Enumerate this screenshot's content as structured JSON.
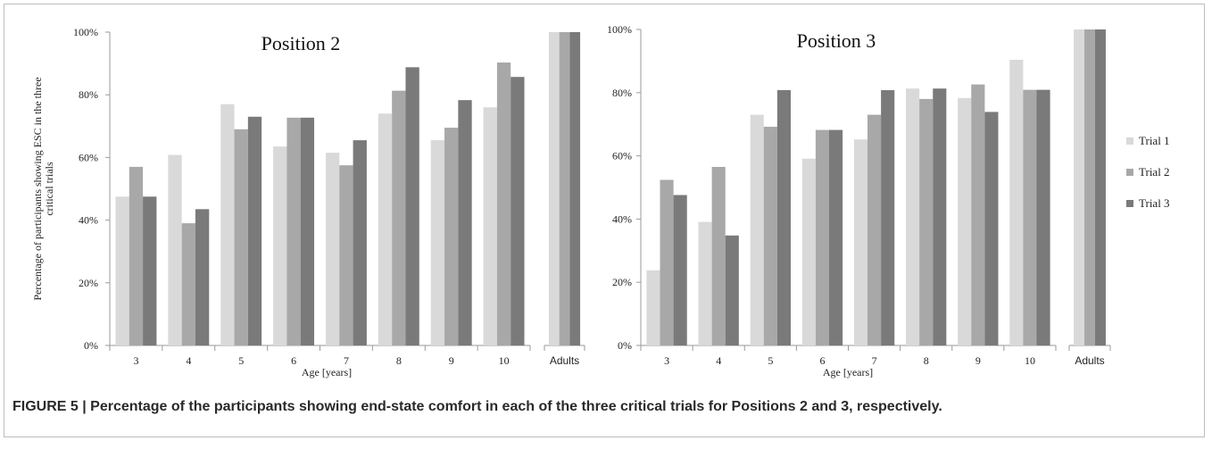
{
  "caption": "FIGURE 5 | Percentage of the participants showing end-state comfort in each of the three critical trials for Positions 2 and 3, respectively.",
  "colors": {
    "trial1": "#d9d9d9",
    "trial2": "#a8a8a8",
    "trial3": "#7a7a7a",
    "axis": "#9a9a9a",
    "text": "#222222"
  },
  "chart_data": [
    {
      "type": "bar",
      "title": "Position 2",
      "ylabel": "Percentage of participants showing ESC in the three critical trials",
      "xlabel": "Age [years]",
      "ylim": [
        0,
        100
      ],
      "yticks": [
        "0%",
        "20%",
        "40%",
        "60%",
        "80%",
        "100%"
      ],
      "categories": [
        "3",
        "4",
        "5",
        "6",
        "7",
        "8",
        "9",
        "10",
        "Adults"
      ],
      "series": [
        {
          "name": "Trial 1",
          "values": [
            47.5,
            60.8,
            77,
            63.5,
            61.5,
            74,
            65.5,
            76,
            100
          ]
        },
        {
          "name": "Trial 2",
          "values": [
            57,
            39,
            69,
            72.7,
            57.5,
            81.3,
            69.5,
            90.3,
            100
          ]
        },
        {
          "name": "Trial 3",
          "values": [
            47.5,
            43.5,
            73,
            72.7,
            65.5,
            88.8,
            78.3,
            85.7,
            100
          ]
        }
      ]
    },
    {
      "type": "bar",
      "title": "Position 3",
      "xlabel": "Age [years]",
      "ylim": [
        0,
        100
      ],
      "yticks": [
        "0%",
        "20%",
        "40%",
        "60%",
        "80%",
        "100%"
      ],
      "categories": [
        "3",
        "4",
        "5",
        "6",
        "7",
        "8",
        "9",
        "10",
        "Adults"
      ],
      "legend_position": "right",
      "series": [
        {
          "name": "Trial 1",
          "values": [
            23.8,
            39.1,
            73,
            59.1,
            65.2,
            81.3,
            78.3,
            90.4,
            100
          ]
        },
        {
          "name": "Trial 2",
          "values": [
            52.4,
            56.5,
            69.2,
            68.2,
            73,
            78,
            82.6,
            80.9,
            100
          ]
        },
        {
          "name": "Trial 3",
          "values": [
            47.6,
            34.8,
            80.8,
            68.2,
            80.8,
            81.3,
            73.9,
            80.9,
            100
          ]
        }
      ]
    }
  ]
}
